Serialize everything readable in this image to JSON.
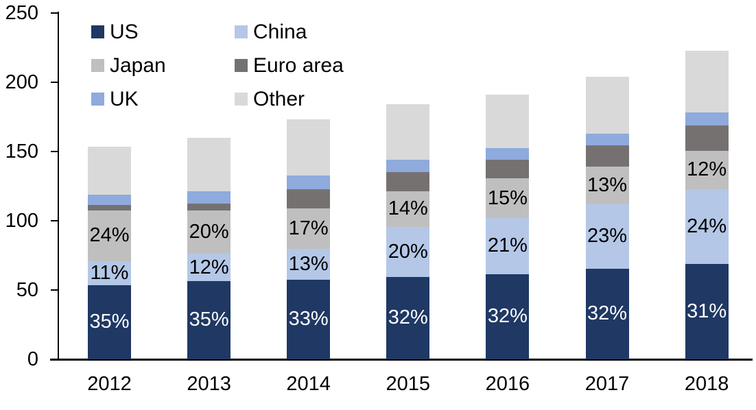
{
  "chart_data": {
    "type": "bar",
    "stacked": true,
    "title": "",
    "xlabel": "",
    "ylabel": "",
    "categories": [
      "2012",
      "2013",
      "2014",
      "2015",
      "2016",
      "2017",
      "2018"
    ],
    "series": [
      {
        "name": "US",
        "color": "#1F3864",
        "values": [
          53.5,
          56.5,
          57.5,
          59.5,
          61.5,
          65.5,
          69
        ],
        "labels": [
          "35%",
          "35%",
          "33%",
          "32%",
          "32%",
          "32%",
          "31%"
        ],
        "label_color": "#FFFFFF"
      },
      {
        "name": "China",
        "color": "#B4C7E7",
        "values": [
          17.5,
          19.5,
          22,
          36,
          40.5,
          46.5,
          54
        ],
        "labels": [
          "11%",
          "12%",
          "13%",
          "20%",
          "21%",
          "23%",
          "24%"
        ],
        "label_color": "#000000"
      },
      {
        "name": "Japan",
        "color": "#BFBFBF",
        "values": [
          36.5,
          31.5,
          29.5,
          26,
          28.5,
          27,
          27.5
        ],
        "labels": [
          "24%",
          "20%",
          "17%",
          "14%",
          "15%",
          "13%",
          "12%"
        ],
        "label_color": "#000000"
      },
      {
        "name": "Euro area",
        "color": "#767171",
        "values": [
          4,
          5,
          14,
          13.5,
          13.5,
          15.5,
          18.5
        ],
        "labels": null,
        "label_color": null
      },
      {
        "name": "UK",
        "color": "#8FAADC",
        "values": [
          7.5,
          9,
          9.5,
          9,
          8.5,
          8.5,
          9
        ],
        "labels": null,
        "label_color": null
      },
      {
        "name": "Other",
        "color": "#D9D9D9",
        "values": [
          34.5,
          38.5,
          41,
          40,
          38.5,
          41,
          45
        ],
        "labels": null,
        "label_color": null
      }
    ],
    "totals": [
      153.5,
      160,
      173.5,
      184,
      191,
      204,
      223
    ],
    "ylim": [
      0,
      250
    ],
    "yticks": [
      0,
      50,
      100,
      150,
      200,
      250
    ],
    "grid": false,
    "axis_color": "#000000",
    "legend": {
      "position": "top-left",
      "columns": 2,
      "items": [
        "US",
        "China",
        "Japan",
        "Euro area",
        "UK",
        "Other"
      ]
    }
  }
}
